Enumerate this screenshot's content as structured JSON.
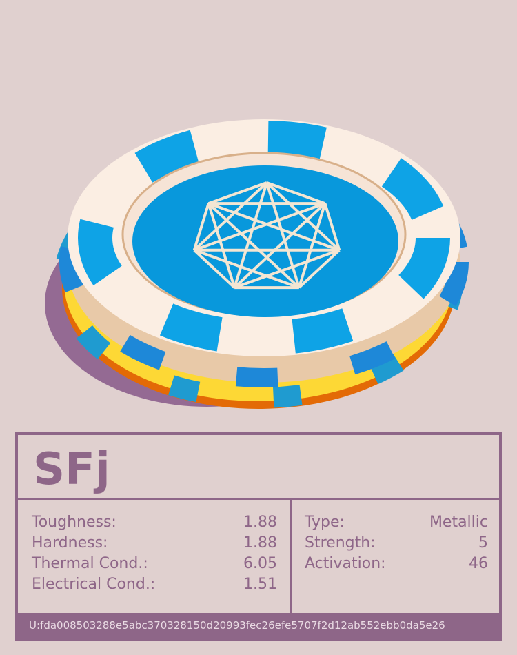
{
  "header": {
    "title": "SFj"
  },
  "properties_left": [
    {
      "label": "Toughness:",
      "value": "1.88"
    },
    {
      "label": "Hardness:",
      "value": "1.88"
    },
    {
      "label": "Thermal Cond.:",
      "value": "6.05"
    },
    {
      "label": "Electrical Cond.:",
      "value": "1.51"
    }
  ],
  "properties_right": [
    {
      "label": "Type:",
      "value": "Metallic"
    },
    {
      "label": "Strength:",
      "value": "5"
    },
    {
      "label": "Activation:",
      "value": "46"
    }
  ],
  "footer": {
    "id": "U:fda008503288e5abc370328150d20993fec26efe5707f2d12ab552ebb0da5e26"
  }
}
